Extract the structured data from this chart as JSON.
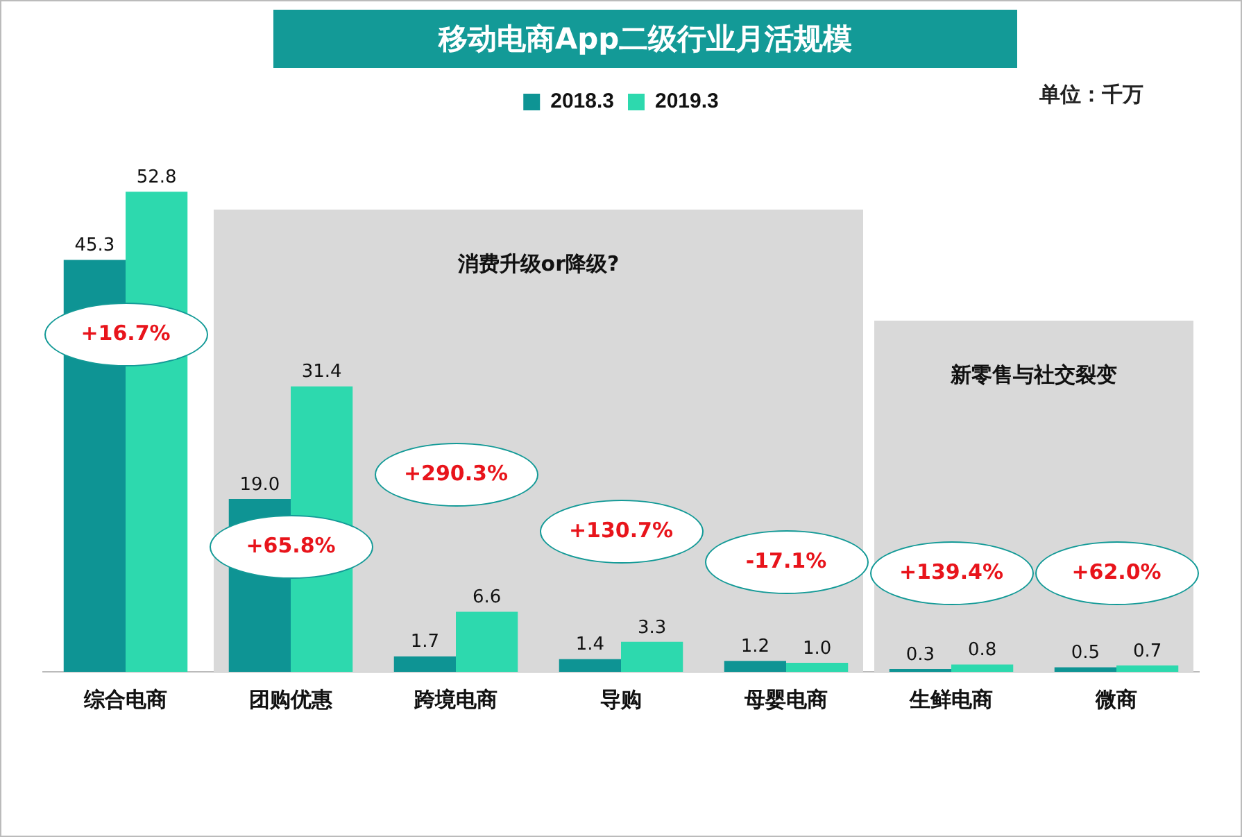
{
  "chart_data": {
    "type": "bar",
    "title": "移动电商App二级行业月活规模",
    "categories": [
      "综合电商",
      "团购优惠",
      "跨境电商",
      "导购",
      "母婴电商",
      "生鲜电商",
      "微商"
    ],
    "series": [
      {
        "name": "2018.3",
        "color": "#0e9494",
        "values": [
          45.3,
          19.0,
          1.7,
          1.4,
          1.2,
          0.3,
          0.5
        ],
        "value_labels": [
          "45.3",
          "19.0",
          "1.7",
          "1.4",
          "1.2",
          "0.3",
          "0.5"
        ]
      },
      {
        "name": "2019.3",
        "color": "#2dd9ae",
        "values": [
          52.8,
          31.4,
          6.6,
          3.3,
          1.0,
          0.8,
          0.7
        ],
        "value_labels": [
          "52.8",
          "31.4",
          "6.6",
          "3.3",
          "1.0",
          "0.8",
          "0.7"
        ]
      }
    ],
    "bands": [
      {
        "axis": "x",
        "from": "团购优惠",
        "to": "母婴电商",
        "label": "消费升级or降级?",
        "color": "#d9d9d9"
      },
      {
        "axis": "x",
        "from": "生鲜电商",
        "to": "微商",
        "label": "新零售与社交裂变",
        "color": "#d9d9d9"
      }
    ],
    "annotations": [
      "单位：千万",
      "+16.7%",
      "+65.8%",
      "+290.3%",
      "+130.7%",
      "-17.1%",
      "+139.4%",
      "+62.0%"
    ],
    "legend": "top",
    "grid": false
  }
}
